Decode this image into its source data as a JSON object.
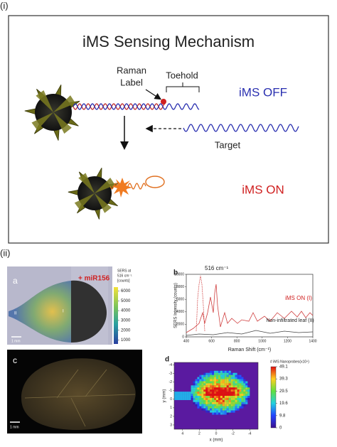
{
  "panel_labels": [
    "(i)",
    "(ii)"
  ],
  "mechanism": {
    "title": "iMS Sensing Mechanism",
    "raman_label": [
      "Raman",
      "Label"
    ],
    "toehold": "Toehold",
    "ims_off": "iMS OFF",
    "target": "Target",
    "ims_on": "iMS ON"
  },
  "panel_a": {
    "letter": "a",
    "treatment": "+ miR156",
    "region_1": "I",
    "region_2": "II",
    "scale_bar": "1 mm",
    "colorbar_title": [
      "SERS at",
      "516 cm⁻¹",
      "[counts]"
    ],
    "colorbar_lim": [
      600,
      6400
    ],
    "colorbar_ticks": [
      6000,
      5000,
      4000,
      3000,
      2000,
      1000
    ]
  },
  "panel_b": {
    "letter": "b",
    "peak_label": "516 cm⁻¹",
    "series_on": "iMS ON (I)",
    "series_off": "Non-infiltrated leaf (II)",
    "y_label": "SERS Intensity (counts)",
    "x_label": "Raman Shift (cm⁻¹)",
    "ylim": [
      0,
      10000
    ],
    "yticks": [
      0,
      2000,
      4000,
      6000,
      8000,
      10000
    ],
    "xlim": [
      400,
      1400
    ],
    "xticks": [
      400,
      600,
      800,
      1000,
      1200,
      1400
    ]
  },
  "panel_c": {
    "letter": "c",
    "scale_bar": "1 mm"
  },
  "panel_d": {
    "letter": "d",
    "colorbar_title": "# iMS Nanoprobes(x10⁴)",
    "colorbar_lim": [
      0,
      49.1
    ],
    "colorbar_ticks": [
      49.1,
      39.3,
      29.5,
      19.6,
      9.8,
      0
    ],
    "y_label": "y (mm)",
    "ylim": [
      -4.3,
      3.5
    ],
    "yticks": [
      -4,
      -3,
      -2,
      -1,
      0,
      1,
      2,
      3
    ],
    "x_label": "x (mm)",
    "xlim": [
      5,
      -5
    ],
    "xticks": [
      4,
      2,
      0,
      -2,
      -4
    ]
  }
}
